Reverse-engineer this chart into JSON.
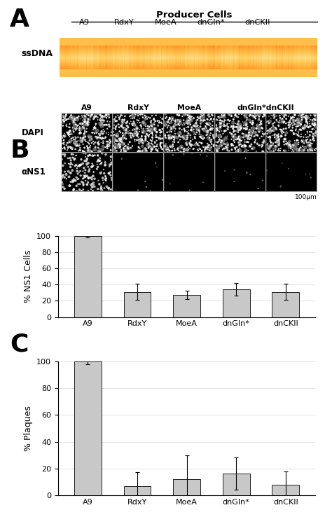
{
  "panel_A": {
    "label": "A",
    "gel_title": "Producer Cells",
    "gel_columns": [
      "A9",
      "RdxY",
      "MoeA",
      "dnGIn*dnCKII"
    ],
    "gel_columns_5": [
      "A9",
      "RdxY",
      "MoeA",
      "dnGIn*",
      "dnCKII"
    ],
    "ylabel": "ssDNA",
    "band_color": "#b8a080",
    "bg_color": "#c8b888"
  },
  "panel_B": {
    "label": "B",
    "microscopy_rows": [
      "DAPI",
      "αNS1"
    ],
    "microscopy_col_labels": [
      "A9",
      "RdxY",
      "MoeA",
      "dnGIn*dnCKII"
    ],
    "scale_bar": "100μm",
    "bar_categories": [
      "A9",
      "RdxY",
      "MoeA",
      "dnGIn*",
      "dnCKII"
    ],
    "bar_values": [
      100,
      31,
      27,
      34,
      31
    ],
    "bar_errors": [
      2,
      10,
      5,
      8,
      10
    ],
    "bar_color": "#c8c8c8",
    "ylabel": "% NS1 Cells",
    "ylim": [
      0,
      100
    ],
    "yticks": [
      0,
      20,
      40,
      60,
      80,
      100
    ]
  },
  "panel_C": {
    "label": "C",
    "bar_categories": [
      "A9",
      "RdxY",
      "MoeA",
      "dnGIn*",
      "dnCKII"
    ],
    "bar_values": [
      100,
      7,
      12,
      16,
      8
    ],
    "bar_errors": [
      2,
      10,
      18,
      12,
      10
    ],
    "bar_color": "#c8c8c8",
    "ylabel": "% Plaques",
    "ylim": [
      0,
      100
    ],
    "yticks": [
      0,
      20,
      40,
      60,
      80,
      100
    ]
  },
  "background_color": "#ffffff",
  "label_fontsize": 26,
  "axis_fontsize": 9,
  "tick_fontsize": 8,
  "bar_width": 0.55
}
